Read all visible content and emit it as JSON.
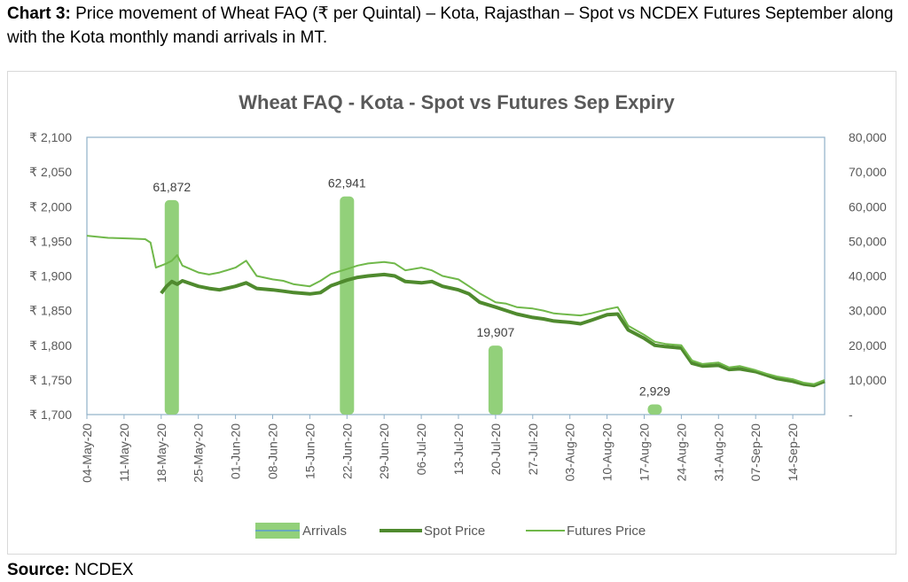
{
  "heading": {
    "chart_no": "Chart 3:",
    "text": "Price movement of Wheat FAQ (₹ per Quintal) – Kota, Rajasthan – Spot vs NCDEX Futures September along with the Kota monthly mandi arrivals in MT."
  },
  "source": {
    "label": "Source:",
    "value": "NCDEX"
  },
  "colors": {
    "arrivals": "#92d07a",
    "arrivals_legend_line": "#5b9bd5",
    "spot": "#4f8a2e",
    "futures": "#70b84a",
    "axis": "#8fb0c9",
    "text": "#595959",
    "title": "#595959"
  },
  "chart_data": {
    "type": "line",
    "title": "Wheat FAQ - Kota - Spot vs Futures Sep Expiry",
    "y_left": {
      "ticks": [
        "₹ 2,100",
        "₹ 2,050",
        "₹ 2,000",
        "₹ 1,950",
        "₹ 1,900",
        "₹ 1,850",
        "₹ 1,800",
        "₹ 1,750",
        "₹ 1,700"
      ],
      "min": 1700,
      "max": 2100
    },
    "y_right": {
      "ticks": [
        "80,000",
        "70,000",
        "60,000",
        "50,000",
        "40,000",
        "30,000",
        "20,000",
        "10,000",
        "-"
      ],
      "min": 0,
      "max": 80000
    },
    "x_ticks": [
      "04-May-20",
      "11-May-20",
      "18-May-20",
      "25-May-20",
      "01-Jun-20",
      "08-Jun-20",
      "15-Jun-20",
      "22-Jun-20",
      "29-Jun-20",
      "06-Jul-20",
      "13-Jul-20",
      "20-Jul-20",
      "27-Jul-20",
      "03-Aug-20",
      "10-Aug-20",
      "17-Aug-20",
      "24-Aug-20",
      "31-Aug-20",
      "07-Sep-20",
      "14-Sep-20"
    ],
    "x_range": [
      "2020-05-04",
      "2020-09-20"
    ],
    "grid": false,
    "legend_position": "bottom",
    "series": [
      {
        "name": "Arrivals",
        "kind": "bar",
        "axis": "right",
        "points": [
          {
            "date": "2020-05-20",
            "value": 61872,
            "label": "61,872"
          },
          {
            "date": "2020-06-22",
            "value": 62941,
            "label": "62,941"
          },
          {
            "date": "2020-07-20",
            "value": 19907,
            "label": "19,907"
          },
          {
            "date": "2020-08-19",
            "value": 2929,
            "label": "2,929"
          }
        ]
      },
      {
        "name": "Spot Price",
        "kind": "line",
        "axis": "left",
        "points": [
          [
            "2020-05-18",
            1875
          ],
          [
            "2020-05-19",
            1885
          ],
          [
            "2020-05-20",
            1892
          ],
          [
            "2020-05-21",
            1888
          ],
          [
            "2020-05-22",
            1893
          ],
          [
            "2020-05-25",
            1885
          ],
          [
            "2020-05-27",
            1882
          ],
          [
            "2020-05-29",
            1880
          ],
          [
            "2020-06-01",
            1885
          ],
          [
            "2020-06-03",
            1890
          ],
          [
            "2020-06-05",
            1882
          ],
          [
            "2020-06-08",
            1880
          ],
          [
            "2020-06-10",
            1878
          ],
          [
            "2020-06-12",
            1876
          ],
          [
            "2020-06-15",
            1874
          ],
          [
            "2020-06-17",
            1876
          ],
          [
            "2020-06-19",
            1886
          ],
          [
            "2020-06-22",
            1894
          ],
          [
            "2020-06-24",
            1898
          ],
          [
            "2020-06-26",
            1900
          ],
          [
            "2020-06-29",
            1902
          ],
          [
            "2020-07-01",
            1900
          ],
          [
            "2020-07-03",
            1892
          ],
          [
            "2020-07-06",
            1890
          ],
          [
            "2020-07-08",
            1892
          ],
          [
            "2020-07-10",
            1885
          ],
          [
            "2020-07-13",
            1880
          ],
          [
            "2020-07-15",
            1874
          ],
          [
            "2020-07-17",
            1862
          ],
          [
            "2020-07-20",
            1855
          ],
          [
            "2020-07-22",
            1850
          ],
          [
            "2020-07-24",
            1845
          ],
          [
            "2020-07-27",
            1840
          ],
          [
            "2020-07-29",
            1838
          ],
          [
            "2020-07-31",
            1835
          ],
          [
            "2020-08-03",
            1833
          ],
          [
            "2020-08-05",
            1831
          ],
          [
            "2020-08-07",
            1836
          ],
          [
            "2020-08-10",
            1844
          ],
          [
            "2020-08-12",
            1845
          ],
          [
            "2020-08-14",
            1822
          ],
          [
            "2020-08-17",
            1810
          ],
          [
            "2020-08-19",
            1800
          ],
          [
            "2020-08-21",
            1798
          ],
          [
            "2020-08-24",
            1796
          ],
          [
            "2020-08-26",
            1774
          ],
          [
            "2020-08-28",
            1770
          ],
          [
            "2020-08-31",
            1771
          ],
          [
            "2020-09-02",
            1765
          ],
          [
            "2020-09-04",
            1766
          ],
          [
            "2020-09-07",
            1762
          ],
          [
            "2020-09-09",
            1757
          ],
          [
            "2020-09-11",
            1752
          ],
          [
            "2020-09-14",
            1748
          ],
          [
            "2020-09-16",
            1744
          ],
          [
            "2020-09-18",
            1742
          ],
          [
            "2020-09-20",
            1748
          ]
        ]
      },
      {
        "name": "Futures Price",
        "kind": "line",
        "axis": "left",
        "points": [
          [
            "2020-05-04",
            1958
          ],
          [
            "2020-05-08",
            1955
          ],
          [
            "2020-05-12",
            1954
          ],
          [
            "2020-05-15",
            1953
          ],
          [
            "2020-05-16",
            1948
          ],
          [
            "2020-05-17",
            1912
          ],
          [
            "2020-05-18",
            1915
          ],
          [
            "2020-05-19",
            1918
          ],
          [
            "2020-05-20",
            1922
          ],
          [
            "2020-05-21",
            1930
          ],
          [
            "2020-05-22",
            1915
          ],
          [
            "2020-05-25",
            1905
          ],
          [
            "2020-05-27",
            1902
          ],
          [
            "2020-05-29",
            1905
          ],
          [
            "2020-06-01",
            1912
          ],
          [
            "2020-06-03",
            1922
          ],
          [
            "2020-06-05",
            1900
          ],
          [
            "2020-06-08",
            1895
          ],
          [
            "2020-06-10",
            1893
          ],
          [
            "2020-06-12",
            1888
          ],
          [
            "2020-06-15",
            1885
          ],
          [
            "2020-06-17",
            1893
          ],
          [
            "2020-06-19",
            1903
          ],
          [
            "2020-06-22",
            1910
          ],
          [
            "2020-06-24",
            1915
          ],
          [
            "2020-06-26",
            1918
          ],
          [
            "2020-06-29",
            1920
          ],
          [
            "2020-07-01",
            1918
          ],
          [
            "2020-07-03",
            1908
          ],
          [
            "2020-07-06",
            1912
          ],
          [
            "2020-07-08",
            1908
          ],
          [
            "2020-07-10",
            1900
          ],
          [
            "2020-07-13",
            1895
          ],
          [
            "2020-07-15",
            1885
          ],
          [
            "2020-07-17",
            1875
          ],
          [
            "2020-07-20",
            1862
          ],
          [
            "2020-07-22",
            1860
          ],
          [
            "2020-07-24",
            1855
          ],
          [
            "2020-07-27",
            1853
          ],
          [
            "2020-07-29",
            1850
          ],
          [
            "2020-07-31",
            1846
          ],
          [
            "2020-08-03",
            1844
          ],
          [
            "2020-08-05",
            1843
          ],
          [
            "2020-08-07",
            1846
          ],
          [
            "2020-08-10",
            1852
          ],
          [
            "2020-08-12",
            1855
          ],
          [
            "2020-08-14",
            1828
          ],
          [
            "2020-08-17",
            1815
          ],
          [
            "2020-08-19",
            1805
          ],
          [
            "2020-08-21",
            1802
          ],
          [
            "2020-08-24",
            1800
          ],
          [
            "2020-08-26",
            1778
          ],
          [
            "2020-08-28",
            1773
          ],
          [
            "2020-08-31",
            1775
          ],
          [
            "2020-09-02",
            1768
          ],
          [
            "2020-09-04",
            1770
          ],
          [
            "2020-09-07",
            1764
          ],
          [
            "2020-09-09",
            1759
          ],
          [
            "2020-09-11",
            1755
          ],
          [
            "2020-09-14",
            1751
          ],
          [
            "2020-09-16",
            1746
          ],
          [
            "2020-09-18",
            1744
          ],
          [
            "2020-09-20",
            1750
          ]
        ]
      }
    ]
  }
}
